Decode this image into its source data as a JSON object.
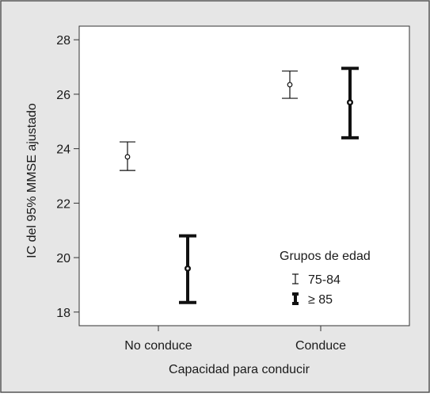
{
  "chart_data": {
    "type": "errorbar",
    "categories": [
      "No conduce",
      "Conduce"
    ],
    "series": [
      {
        "name": "75-84",
        "means": [
          23.7,
          26.35
        ],
        "lower": [
          23.2,
          25.85
        ],
        "upper": [
          24.25,
          26.85
        ]
      },
      {
        "name": "≥ 85",
        "means": [
          19.6,
          25.7
        ],
        "lower": [
          18.35,
          24.4
        ],
        "upper": [
          20.8,
          26.95
        ]
      }
    ],
    "xlabel": "Capacidad para conducir",
    "ylabel": "IC del 95% MMSE ajustado",
    "ylim": [
      17.5,
      28.5
    ],
    "yticks": [
      18,
      20,
      22,
      24,
      26,
      28
    ],
    "legend": {
      "title": "Grupos de edad",
      "placement": "bottom-right"
    },
    "background_color": "#e6e6e6",
    "plot_color": "#ffffff",
    "grid": false
  }
}
